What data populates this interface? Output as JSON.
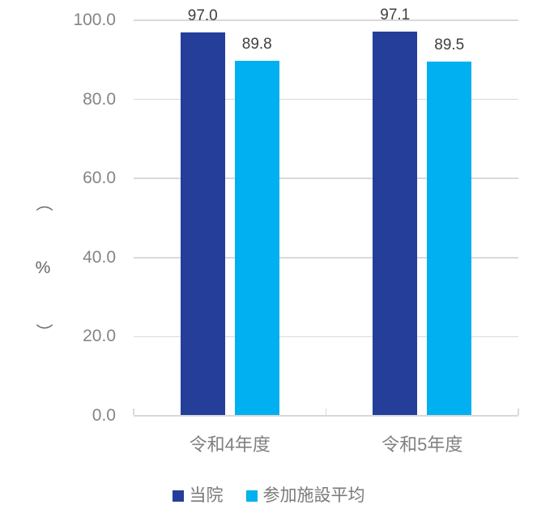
{
  "chart_data": {
    "type": "bar",
    "title": "",
    "categories": [
      "令和4年度",
      "令和5年度"
    ],
    "series": [
      {
        "name": "当院",
        "color": "#243E9A",
        "values": [
          97.0,
          97.1
        ],
        "labels": [
          "97.0",
          "97.1"
        ]
      },
      {
        "name": "参加施設平均",
        "color": "#00B0F0",
        "values": [
          89.8,
          89.5
        ],
        "labels": [
          "89.8",
          "89.5"
        ]
      }
    ],
    "y_axis": {
      "min": 0,
      "max": 100,
      "step": 20,
      "tick_labels": [
        "0.0",
        "20.0",
        "40.0",
        "60.0",
        "80.0",
        "100.0"
      ],
      "title_open": "（",
      "title_symbol": "%",
      "title_close": "）"
    },
    "xlabel": "",
    "ylabel": "（%）",
    "ylim": [
      0,
      100
    ],
    "grid": true,
    "legend_position": "bottom",
    "colors": {
      "gridline": "#D9D9D9",
      "axis_line": "#D9D9D9",
      "tick_label": "#858585",
      "category_label": "#808080",
      "data_label": "#404040",
      "legend_label": "#7A7A7A",
      "axis_title": "#666666",
      "background": "#FFFFFF"
    }
  }
}
